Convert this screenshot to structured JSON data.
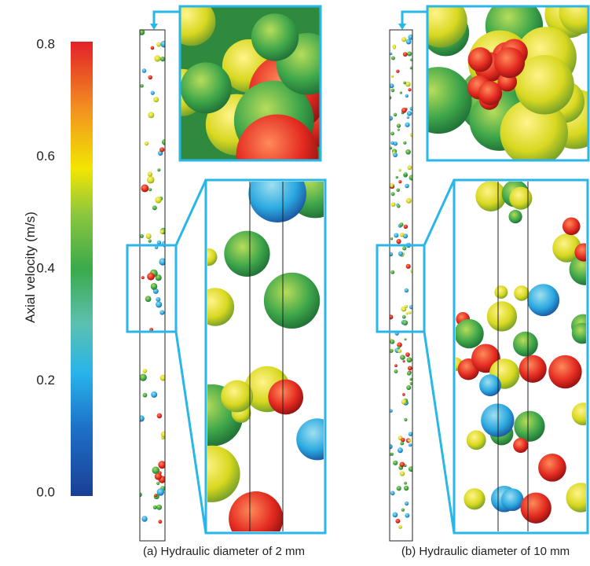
{
  "colorbar": {
    "label": "Axial velocity (m/s)",
    "lim": [
      0,
      0.8
    ],
    "ticks": [
      {
        "value": 0,
        "label": "0.0"
      },
      0.2,
      0.4,
      0.6,
      0.8
    ]
  },
  "panels": [
    {
      "caption": "(a) Hydraulic diameter of 2 mm"
    },
    {
      "caption": "(b) Hydraulic diameter of 10 mm"
    }
  ]
}
